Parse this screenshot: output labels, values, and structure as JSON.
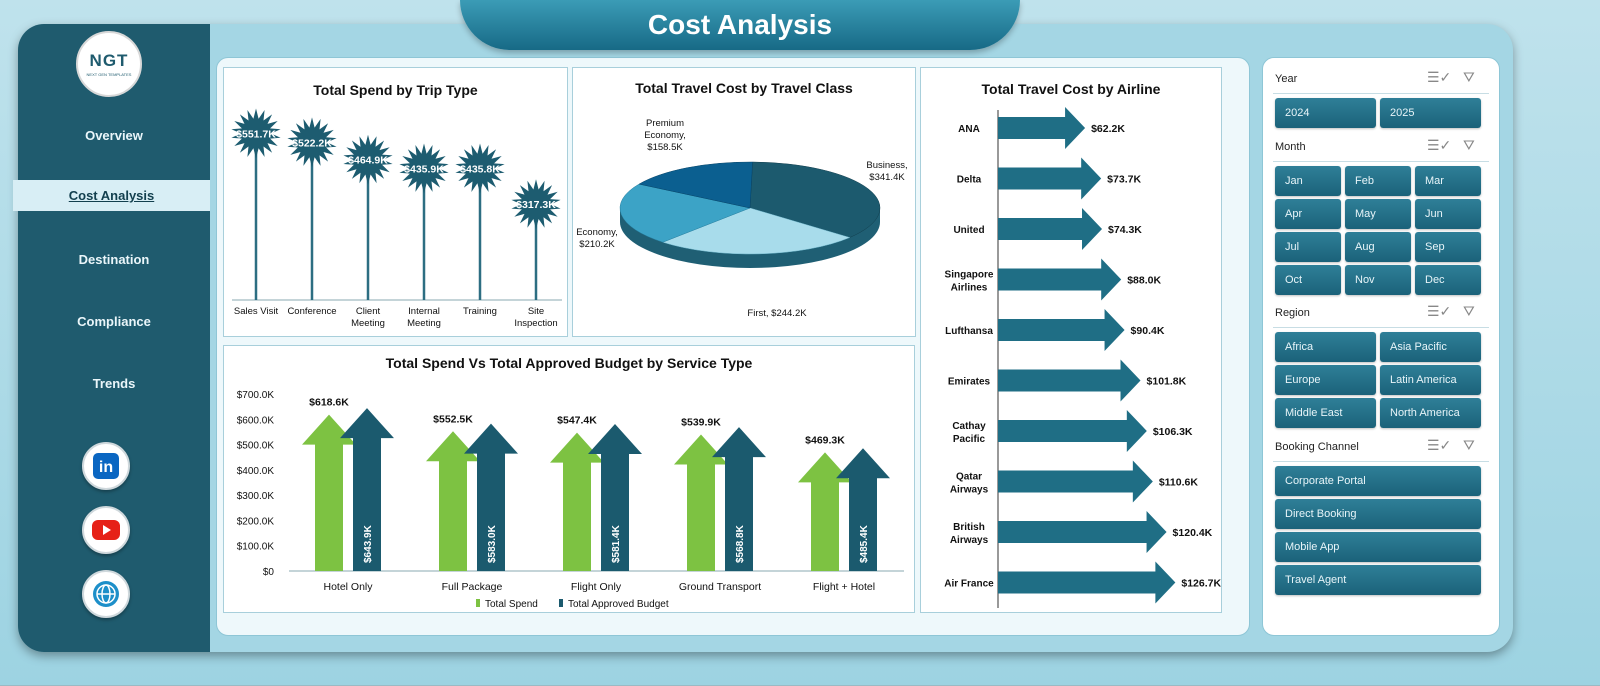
{
  "page": {
    "title": "Cost Analysis"
  },
  "logo": {
    "text": "NGT",
    "subtitle": "NEXT GEN TEMPLATES"
  },
  "nav": [
    {
      "label": "Overview",
      "active": false
    },
    {
      "label": "Cost Analysis",
      "active": true
    },
    {
      "label": "Destination",
      "active": false
    },
    {
      "label": "Compliance",
      "active": false
    },
    {
      "label": "Trends",
      "active": false
    }
  ],
  "social": [
    {
      "icon": "linkedin-icon",
      "color": "#0a66c2"
    },
    {
      "icon": "youtube-icon",
      "color": "#e62117"
    },
    {
      "icon": "globe-icon",
      "color": "#1d8fc9"
    }
  ],
  "colors": {
    "accent": "#1f5b6e",
    "bar_green": "#7dc242",
    "bar_teal": "#1b5a6e",
    "arrow": "#1f6e85"
  },
  "chart_data": [
    {
      "type": "bar",
      "title": "Total Spend by Trip Type",
      "categories": [
        "Sales Visit",
        "Conference",
        "Client Meeting",
        "Internal Meeting",
        "Training",
        "Site Inspection"
      ],
      "values": [
        551.7,
        522.2,
        464.9,
        435.9,
        435.8,
        317.3
      ],
      "labels": [
        "$551.7K",
        "$522.2K",
        "$464.9K",
        "$435.9K",
        "$435.8K",
        "$317.3K"
      ],
      "unit": "K"
    },
    {
      "type": "pie",
      "title": "Total Travel Cost by Travel Class",
      "slices": [
        {
          "name": "Business",
          "value": 341.4,
          "label": "Business, $341.4K"
        },
        {
          "name": "First",
          "value": 244.2,
          "label": "First, $244.2K"
        },
        {
          "name": "Economy",
          "value": 210.2,
          "label": "Economy, $210.2K"
        },
        {
          "name": "Premium Economy",
          "value": 158.5,
          "label": "Premium Economy, $158.5K"
        }
      ]
    },
    {
      "type": "bar",
      "title": "Total Travel Cost by Airline",
      "orientation": "horizontal",
      "categories": [
        "ANA",
        "Delta",
        "United",
        "Singapore Airlines",
        "Lufthansa",
        "Emirates",
        "Cathay Pacific",
        "Qatar Airways",
        "British Airways",
        "Air France"
      ],
      "values": [
        62.2,
        73.7,
        74.3,
        88.0,
        90.4,
        101.8,
        106.3,
        110.6,
        120.4,
        126.7
      ],
      "labels": [
        "$62.2K",
        "$73.7K",
        "$74.3K",
        "$88.0K",
        "$90.4K",
        "$101.8K",
        "$106.3K",
        "$110.6K",
        "$120.4K",
        "$126.7K"
      ]
    },
    {
      "type": "bar",
      "title": "Total Spend Vs Total Approved Budget by Service Type",
      "categories": [
        "Hotel Only",
        "Full Package",
        "Flight Only",
        "Ground Transport",
        "Flight + Hotel"
      ],
      "series": [
        {
          "name": "Total Spend",
          "values": [
            618.6,
            552.5,
            547.4,
            539.9,
            469.3
          ],
          "labels": [
            "$618.6K",
            "$552.5K",
            "$547.4K",
            "$539.9K",
            "$469.3K"
          ]
        },
        {
          "name": "Total Approved Budget",
          "values": [
            643.9,
            583.0,
            581.4,
            568.8,
            485.4
          ],
          "labels": [
            "$643.9K",
            "$583.0K",
            "$581.4K",
            "$568.8K",
            "$485.4K"
          ]
        }
      ],
      "yticks": [
        "$700.0K",
        "$600.0K",
        "$500.0K",
        "$400.0K",
        "$300.0K",
        "$200.0K",
        "$100.0K",
        "$0"
      ],
      "ylim": [
        0,
        700
      ],
      "legend": "bottom"
    }
  ],
  "slicers": [
    {
      "title": "Year",
      "items": [
        "2024",
        "2025"
      ],
      "cols": 2
    },
    {
      "title": "Month",
      "items": [
        "Jan",
        "Feb",
        "Mar",
        "Apr",
        "May",
        "Jun",
        "Jul",
        "Aug",
        "Sep",
        "Oct",
        "Nov",
        "Dec"
      ],
      "cols": 3
    },
    {
      "title": "Region",
      "items": [
        "Africa",
        "Asia Pacific",
        "Europe",
        "Latin America",
        "Middle East",
        "North America"
      ],
      "cols": 2
    },
    {
      "title": "Booking Channel",
      "items": [
        "Corporate Portal",
        "Direct Booking",
        "Mobile App",
        "Travel Agent"
      ],
      "cols": 1
    }
  ]
}
